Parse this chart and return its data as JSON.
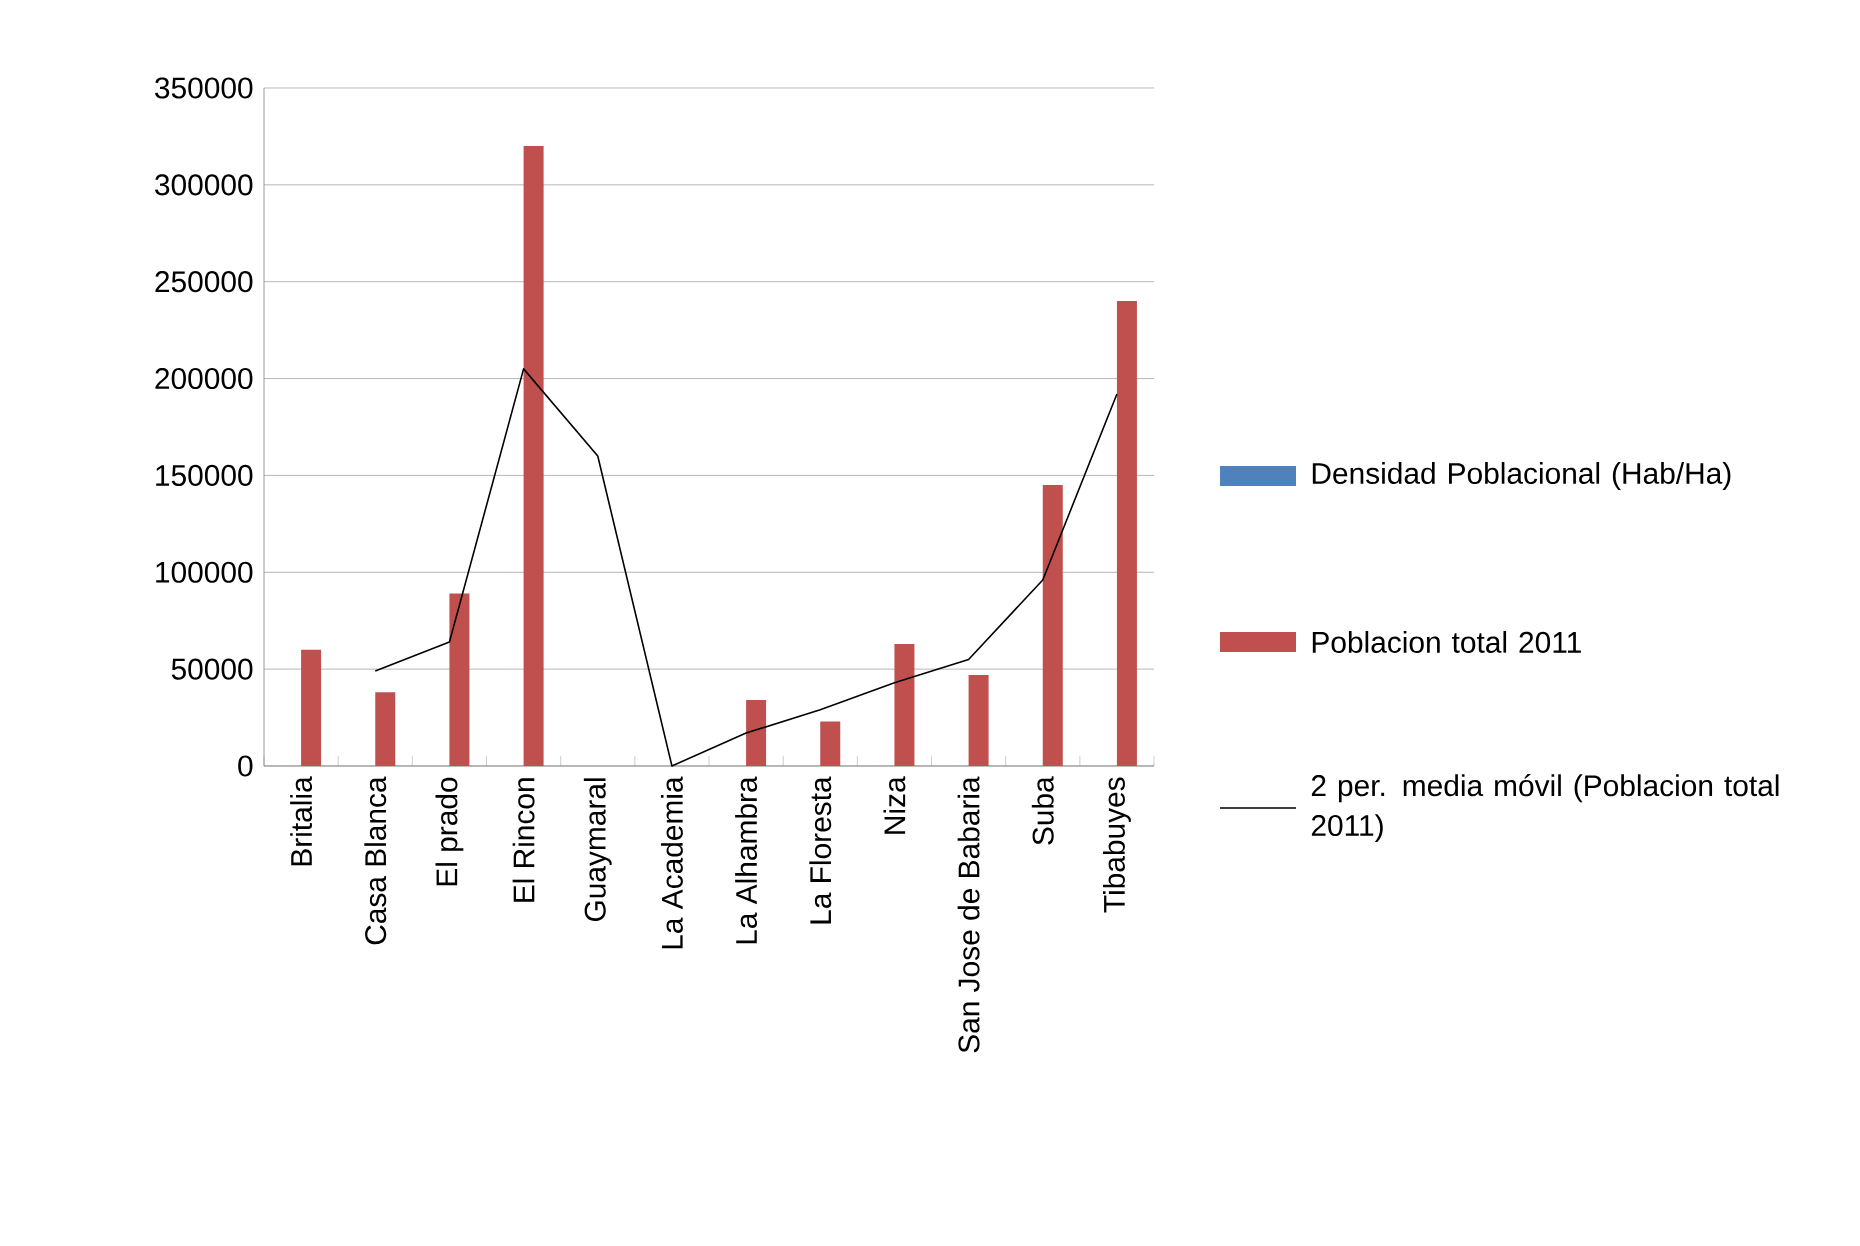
{
  "chart_data": {
    "type": "bar",
    "categories": [
      "Britalia",
      "Casa Blanca",
      "El prado",
      "El Rincon",
      "Guaymaral",
      "La Academia",
      "La Alhambra",
      "La Floresta",
      "Niza",
      "San Jose de Babaria",
      "Suba",
      "Tibabuyes"
    ],
    "series": [
      {
        "name": "Densidad Poblacional (Hab/Ha)",
        "color": "#4f81bd",
        "values": [
          null,
          null,
          null,
          null,
          null,
          null,
          null,
          null,
          null,
          null,
          null,
          null
        ]
      },
      {
        "name": "Poblacion total 2011",
        "color": "#c0504d",
        "values": [
          60000,
          38000,
          89000,
          320000,
          0,
          0,
          34000,
          23000,
          63000,
          47000,
          145000,
          240000
        ]
      },
      {
        "name": "2 per. media móvil (Poblacion total 2011)",
        "type": "line",
        "color": "#000000",
        "values": [
          null,
          49000,
          64000,
          205000,
          160000,
          0,
          17000,
          29000,
          43000,
          55000,
          96000,
          192000
        ]
      }
    ],
    "ylim": [
      0,
      350000
    ],
    "yticks": [
      0,
      50000,
      100000,
      150000,
      200000,
      250000,
      300000,
      350000
    ],
    "grid": "y",
    "legend": "right"
  }
}
